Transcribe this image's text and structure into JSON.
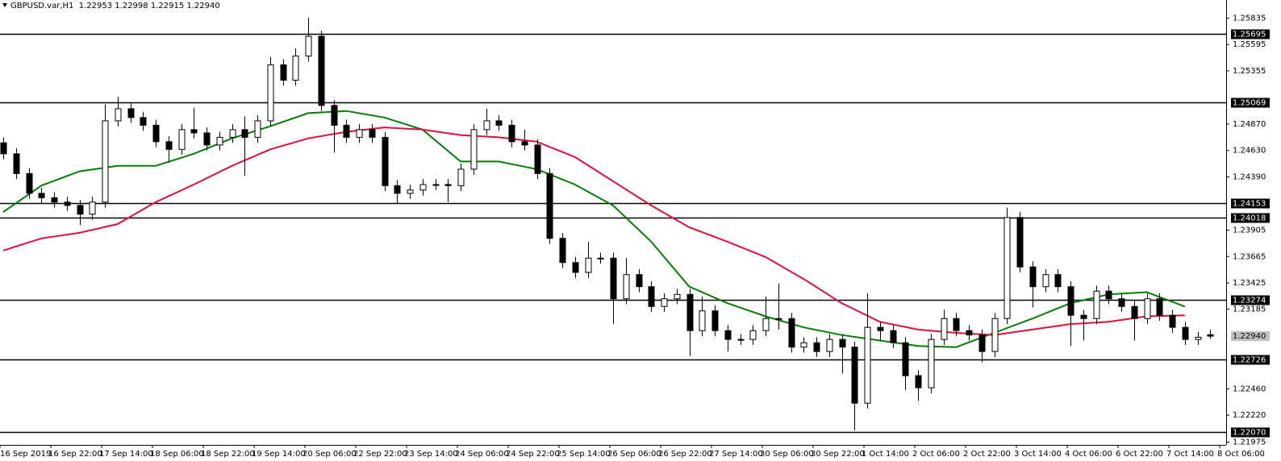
{
  "chart_data": {
    "type": "candlestick",
    "title": "GBPUSD.var,H1  1.22953 1.22998 1.22915 1.22940",
    "xtick_labels": [
      "16 Sep 2019",
      "16 Sep 22:00",
      "17 Sep 14:00",
      "18 Sep 06:00",
      "18 Sep 22:00",
      "19 Sep 14:00",
      "20 Sep 06:00",
      "22 Sep 22:00",
      "23 Sep 14:00",
      "24 Sep 06:00",
      "24 Sep 22:00",
      "25 Sep 14:00",
      "26 Sep 06:00",
      "26 Sep 22:00",
      "27 Sep 14:00",
      "30 Sep 06:00",
      "30 Sep 22:00",
      "1 Oct 14:00",
      "2 Oct 06:00",
      "2 Oct 22:00",
      "3 Oct 14:00",
      "4 Oct 06:00",
      "6 Oct 22:00",
      "7 Oct 14:00",
      "8 Oct 06:00"
    ],
    "open": [
      1.247,
      1.246,
      1.2442,
      1.2424,
      1.242,
      1.2416,
      1.2413,
      1.2405,
      1.2416,
      1.249,
      1.2501,
      1.2493,
      1.2486,
      1.2471,
      1.2464,
      1.2482,
      1.2479,
      1.2468,
      1.2475,
      1.2482,
      1.2475,
      1.249,
      1.2541,
      1.2527,
      1.2549,
      1.2567,
      1.2504,
      1.2486,
      1.2475,
      1.2482,
      1.2475,
      1.2431,
      1.2424,
      1.2427,
      1.2432,
      1.2432,
      1.2431,
      1.2446,
      1.2482,
      1.249,
      1.2486,
      1.2471,
      1.2468,
      1.2442,
      1.2383,
      1.2361,
      1.2352,
      1.2365,
      1.2365,
      1.2328,
      1.235,
      1.2339,
      1.2321,
      1.2328,
      1.2332,
      1.2299,
      1.2317,
      1.2299,
      1.2291,
      1.2291,
      1.2299,
      1.231,
      1.231,
      1.2284,
      1.2288,
      1.228,
      1.2291,
      1.2284,
      1.2233,
      1.2302,
      1.2299,
      1.2288,
      1.2258,
      1.2247,
      1.2291,
      1.231,
      1.2299,
      1.2295,
      1.228,
      1.231,
      1.2402,
      1.2357,
      1.2339,
      1.235,
      1.2339,
      1.2313,
      1.231,
      1.2335,
      1.2328,
      1.2321,
      1.231,
      1.2328,
      1.2313,
      1.2302,
      1.2291,
      1.22953
    ],
    "high": [
      1.2475,
      1.2465,
      1.2447,
      1.2429,
      1.2425,
      1.2421,
      1.2418,
      1.2421,
      1.2505,
      1.2512,
      1.2506,
      1.2498,
      1.2491,
      1.2476,
      1.2487,
      1.2502,
      1.2484,
      1.248,
      1.2487,
      1.2494,
      1.2495,
      1.2548,
      1.2546,
      1.2556,
      1.2584,
      1.2572,
      1.2509,
      1.2491,
      1.2487,
      1.2487,
      1.248,
      1.2436,
      1.2432,
      1.2437,
      1.2437,
      1.2437,
      1.2451,
      1.2487,
      1.2501,
      1.2495,
      1.2491,
      1.2482,
      1.2473,
      1.2447,
      1.2388,
      1.2366,
      1.238,
      1.237,
      1.237,
      1.2365,
      1.2355,
      1.2344,
      1.2333,
      1.2337,
      1.2337,
      1.233,
      1.2322,
      1.2304,
      1.2296,
      1.2304,
      1.233,
      1.2342,
      1.2315,
      1.2293,
      1.2293,
      1.2296,
      1.2296,
      1.2289,
      1.2333,
      1.2307,
      1.2304,
      1.2293,
      1.2263,
      1.2296,
      1.2318,
      1.2315,
      1.2304,
      1.23,
      1.2315,
      1.2411,
      1.2407,
      1.2362,
      1.2355,
      1.2355,
      1.2344,
      1.2318,
      1.234,
      1.234,
      1.2333,
      1.2326,
      1.2333,
      1.2333,
      1.2318,
      1.2307,
      1.2298,
      1.22998
    ],
    "low": [
      1.2455,
      1.2437,
      1.2419,
      1.2415,
      1.2411,
      1.2408,
      1.2395,
      1.24,
      1.2411,
      1.2485,
      1.2488,
      1.2481,
      1.2466,
      1.2452,
      1.2459,
      1.2474,
      1.2463,
      1.2463,
      1.247,
      1.244,
      1.247,
      1.2485,
      1.2522,
      1.2522,
      1.2544,
      1.2499,
      1.2461,
      1.247,
      1.247,
      1.247,
      1.2426,
      1.2415,
      1.2419,
      1.2422,
      1.2427,
      1.2416,
      1.2426,
      1.2441,
      1.2477,
      1.2481,
      1.2466,
      1.2463,
      1.2437,
      1.2378,
      1.2356,
      1.2347,
      1.2347,
      1.236,
      1.2305,
      1.2323,
      1.2334,
      1.2316,
      1.2316,
      1.2323,
      1.2276,
      1.2294,
      1.2294,
      1.228,
      1.2286,
      1.2286,
      1.2294,
      1.23,
      1.2279,
      1.2279,
      1.2275,
      1.2275,
      1.226,
      1.2208,
      1.2228,
      1.229,
      1.2283,
      1.2245,
      1.2235,
      1.2242,
      1.2286,
      1.2294,
      1.229,
      1.227,
      1.2275,
      1.2305,
      1.2352,
      1.232,
      1.2334,
      1.2334,
      1.2285,
      1.229,
      1.2305,
      1.2323,
      1.2316,
      1.229,
      1.2305,
      1.2308,
      1.2297,
      1.2286,
      1.2286,
      1.22915
    ],
    "close": [
      1.246,
      1.2442,
      1.2424,
      1.242,
      1.2416,
      1.2413,
      1.2405,
      1.2416,
      1.249,
      1.2501,
      1.2493,
      1.2486,
      1.2471,
      1.2464,
      1.2482,
      1.2479,
      1.2468,
      1.2475,
      1.2482,
      1.2475,
      1.249,
      1.2541,
      1.2527,
      1.2549,
      1.2567,
      1.2504,
      1.2486,
      1.2475,
      1.2482,
      1.2475,
      1.2431,
      1.2424,
      1.2427,
      1.2432,
      1.2432,
      1.2431,
      1.2446,
      1.2482,
      1.249,
      1.2486,
      1.2471,
      1.2468,
      1.2442,
      1.2383,
      1.2361,
      1.2352,
      1.2365,
      1.2365,
      1.2328,
      1.235,
      1.2339,
      1.2321,
      1.2328,
      1.2332,
      1.2299,
      1.2317,
      1.2299,
      1.2291,
      1.2291,
      1.2299,
      1.231,
      1.231,
      1.2284,
      1.2288,
      1.228,
      1.2291,
      1.2284,
      1.2233,
      1.2302,
      1.2299,
      1.2288,
      1.2258,
      1.2247,
      1.2291,
      1.231,
      1.2299,
      1.2295,
      1.228,
      1.231,
      1.2402,
      1.2357,
      1.2339,
      1.235,
      1.2339,
      1.2313,
      1.231,
      1.2335,
      1.2328,
      1.2321,
      1.231,
      1.2328,
      1.2313,
      1.2302,
      1.2291,
      1.2293,
      1.2294
    ],
    "bull_color": "#ffffff",
    "bear_color": "#000000",
    "wick_color": "#000000",
    "lines": [
      {
        "color": "#008000",
        "values": [
          1.2407,
          1.2431,
          1.2444,
          1.2449,
          1.2449,
          1.246,
          1.2474,
          1.2485,
          1.2497,
          1.2499,
          1.2493,
          1.2482,
          1.2453,
          1.2453,
          1.2446,
          1.2432,
          1.2413,
          1.238,
          1.2339,
          1.2324,
          1.2312,
          1.2302,
          1.2295,
          1.229,
          1.2285,
          1.2284,
          1.2297,
          1.231,
          1.2324,
          1.2332,
          1.2334,
          1.2321
        ]
      },
      {
        "color": "#e0103c",
        "values": [
          1.2372,
          1.2383,
          1.2388,
          1.2396,
          1.2416,
          1.2432,
          1.2449,
          1.2464,
          1.2474,
          1.248,
          1.2484,
          1.2482,
          1.2477,
          1.2475,
          1.2471,
          1.2457,
          1.2435,
          1.2413,
          1.2393,
          1.238,
          1.2366,
          1.2346,
          1.2324,
          1.2307,
          1.23,
          1.2297,
          1.2295,
          1.23,
          1.2305,
          1.2307,
          1.2312,
          1.2313
        ]
      }
    ],
    "levels": [
      1.25695,
      1.25069,
      1.24153,
      1.24018,
      1.23274,
      1.22726,
      {
        "value": 1.2207,
        "label": "1.22070"
      }
    ],
    "current_price": {
      "value": 1.2294,
      "label": "1.22940"
    },
    "ylim": [
      1.2195,
      1.26
    ],
    "yticks": [
      1.25835,
      1.25595,
      1.25355,
      {
        "value": 1.2487,
        "label": "1.24870"
      },
      {
        "value": 1.2463,
        "label": "1.24630"
      },
      {
        "value": 1.2439,
        "label": "1.24390"
      },
      1.23905,
      1.23665,
      1.23425,
      1.23185,
      {
        "value": 1.2246,
        "label": "1.22460"
      },
      {
        "value": 1.2222,
        "label": "1.22220"
      },
      1.21975
    ]
  }
}
